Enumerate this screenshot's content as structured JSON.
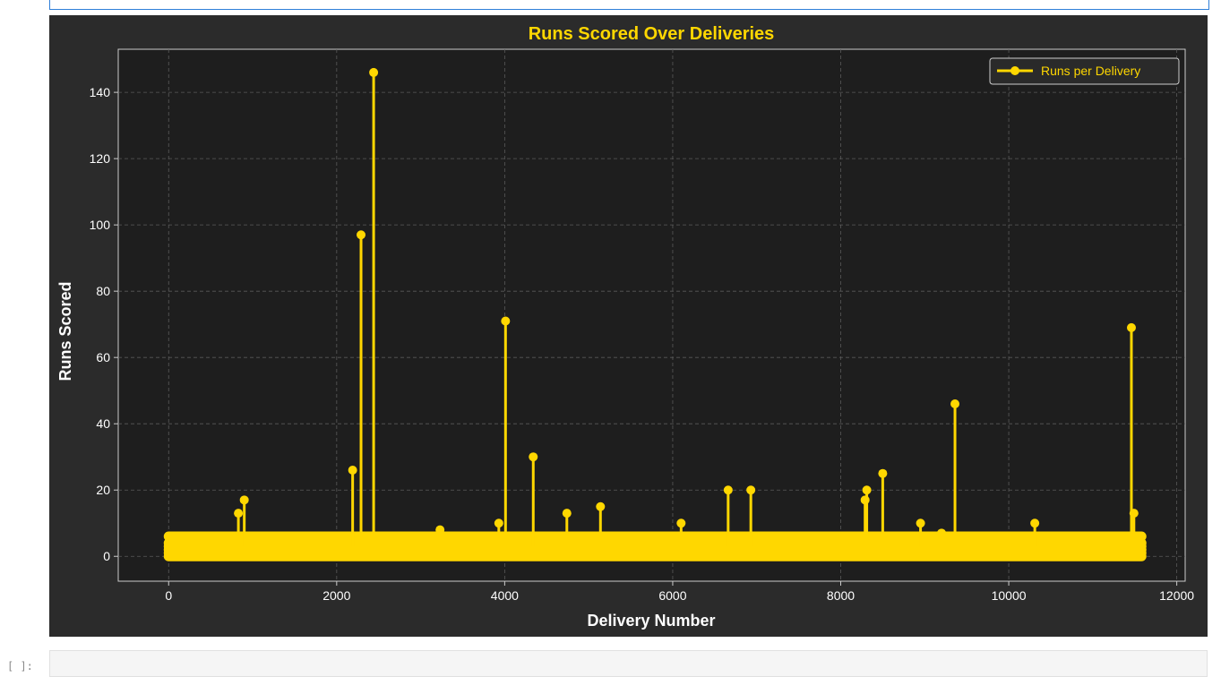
{
  "notebook": {
    "prompt": "[ ]:"
  },
  "colors": {
    "figure_bg": "#2b2b2b",
    "axes_bg": "#1e1e1e",
    "series": "#ffd700",
    "title": "#ffd700",
    "text": "#ffffff",
    "grid": "#5a5a5a"
  },
  "chart_data": {
    "type": "line",
    "title": "Runs Scored Over Deliveries",
    "xlabel": "Delivery Number",
    "ylabel": "Runs Scored",
    "xlim": [
      -600,
      12100
    ],
    "ylim": [
      -7.5,
      153
    ],
    "xticks": [
      0,
      2000,
      4000,
      6000,
      8000,
      10000,
      12000
    ],
    "yticks": [
      0,
      20,
      40,
      60,
      80,
      100,
      120,
      140
    ],
    "grid": true,
    "grid_style": "dashed",
    "legend_position": "top-right",
    "baseline": {
      "x_range": [
        0,
        11580
      ],
      "values": [
        0,
        1,
        2,
        3,
        4,
        6
      ]
    },
    "series": [
      {
        "name": "Runs per Delivery",
        "marker": "circle",
        "spikes": [
          {
            "x": 830,
            "y": 13
          },
          {
            "x": 900,
            "y": 17
          },
          {
            "x": 2190,
            "y": 26
          },
          {
            "x": 2290,
            "y": 97
          },
          {
            "x": 2440,
            "y": 146
          },
          {
            "x": 3230,
            "y": 8
          },
          {
            "x": 3930,
            "y": 10
          },
          {
            "x": 4010,
            "y": 71
          },
          {
            "x": 4340,
            "y": 30
          },
          {
            "x": 4740,
            "y": 13
          },
          {
            "x": 5140,
            "y": 15
          },
          {
            "x": 6100,
            "y": 10
          },
          {
            "x": 6660,
            "y": 20
          },
          {
            "x": 6930,
            "y": 20
          },
          {
            "x": 8290,
            "y": 17
          },
          {
            "x": 8310,
            "y": 20
          },
          {
            "x": 8500,
            "y": 25
          },
          {
            "x": 8950,
            "y": 10
          },
          {
            "x": 9200,
            "y": 7
          },
          {
            "x": 9360,
            "y": 46
          },
          {
            "x": 10310,
            "y": 10
          },
          {
            "x": 11460,
            "y": 69
          },
          {
            "x": 11490,
            "y": 13
          }
        ]
      }
    ]
  }
}
